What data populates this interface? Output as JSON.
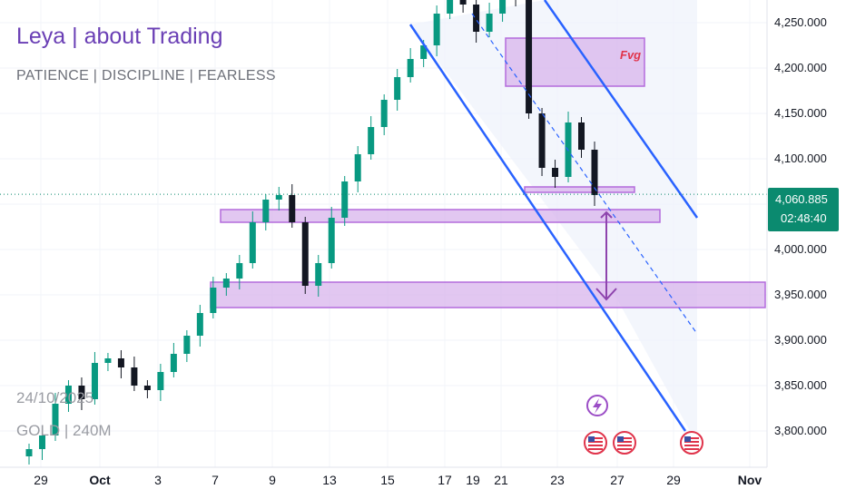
{
  "header": {
    "title": "Leya | about Trading",
    "subtitle": "PATIENCE  |  DISCIPLINE  |  FEARLESS"
  },
  "watermark": {
    "date": "24/10/2025",
    "symbol": "GOLD | 240M"
  },
  "price_axis": {
    "current_price": "4,060.885",
    "countdown": "02:48:40",
    "badge_color": "#0b8a6f"
  },
  "annotations": {
    "fvg_label": "Fvg"
  },
  "colors": {
    "up": "#089981",
    "down": "#131722",
    "channel": "#2962ff",
    "zone_fill": "#d8b4ec",
    "zone_stroke": "#b36bdc",
    "arrow": "#8e44ad",
    "current_line": "#0b8a6f"
  },
  "icons": [
    "lightning-event-icon",
    "us-flag-event-icon",
    "us-flag-event-icon",
    "us-flag-event-icon"
  ],
  "chart_data": {
    "type": "candlestick",
    "symbol": "GOLD",
    "timeframe": "240M",
    "ylim": [
      3770,
      4310
    ],
    "y_ticks": [
      3800,
      3850,
      3900,
      3950,
      4000,
      4050,
      4100,
      4150,
      4200,
      4250
    ],
    "y_tick_labels": [
      "3,800.000",
      "3,850.000",
      "3,900.000",
      "3,950.000",
      "4,000.000",
      "4,050.000",
      "4,100.000",
      "4,150.000",
      "4,200.000",
      "4,250.000"
    ],
    "x_labels": [
      "29",
      "Oct",
      "3",
      "7",
      "9",
      "13",
      "15",
      "17",
      "19",
      "21",
      "23",
      "27",
      "29",
      "Nov"
    ],
    "current_price": 4060.885,
    "closes_approx": [
      3780,
      3795,
      3830,
      3850,
      3835,
      3875,
      3880,
      3870,
      3850,
      3845,
      3865,
      3885,
      3905,
      3930,
      3958,
      3968,
      3985,
      4030,
      4055,
      4060,
      4030,
      3960,
      3985,
      4035,
      4075,
      4105,
      4135,
      4165,
      4190,
      4210,
      4225,
      4260,
      4290,
      4270,
      4240,
      4260,
      4300,
      4280,
      4150,
      4090,
      4080,
      4140,
      4110,
      4060
    ],
    "zones": [
      {
        "name": "Fvg",
        "from": 4190,
        "to": 4245
      },
      {
        "from": 4070,
        "to": 4075
      },
      {
        "from": 4037,
        "to": 4052
      },
      {
        "from": 3940,
        "to": 3970
      }
    ],
    "channel": {
      "type": "descending"
    }
  }
}
